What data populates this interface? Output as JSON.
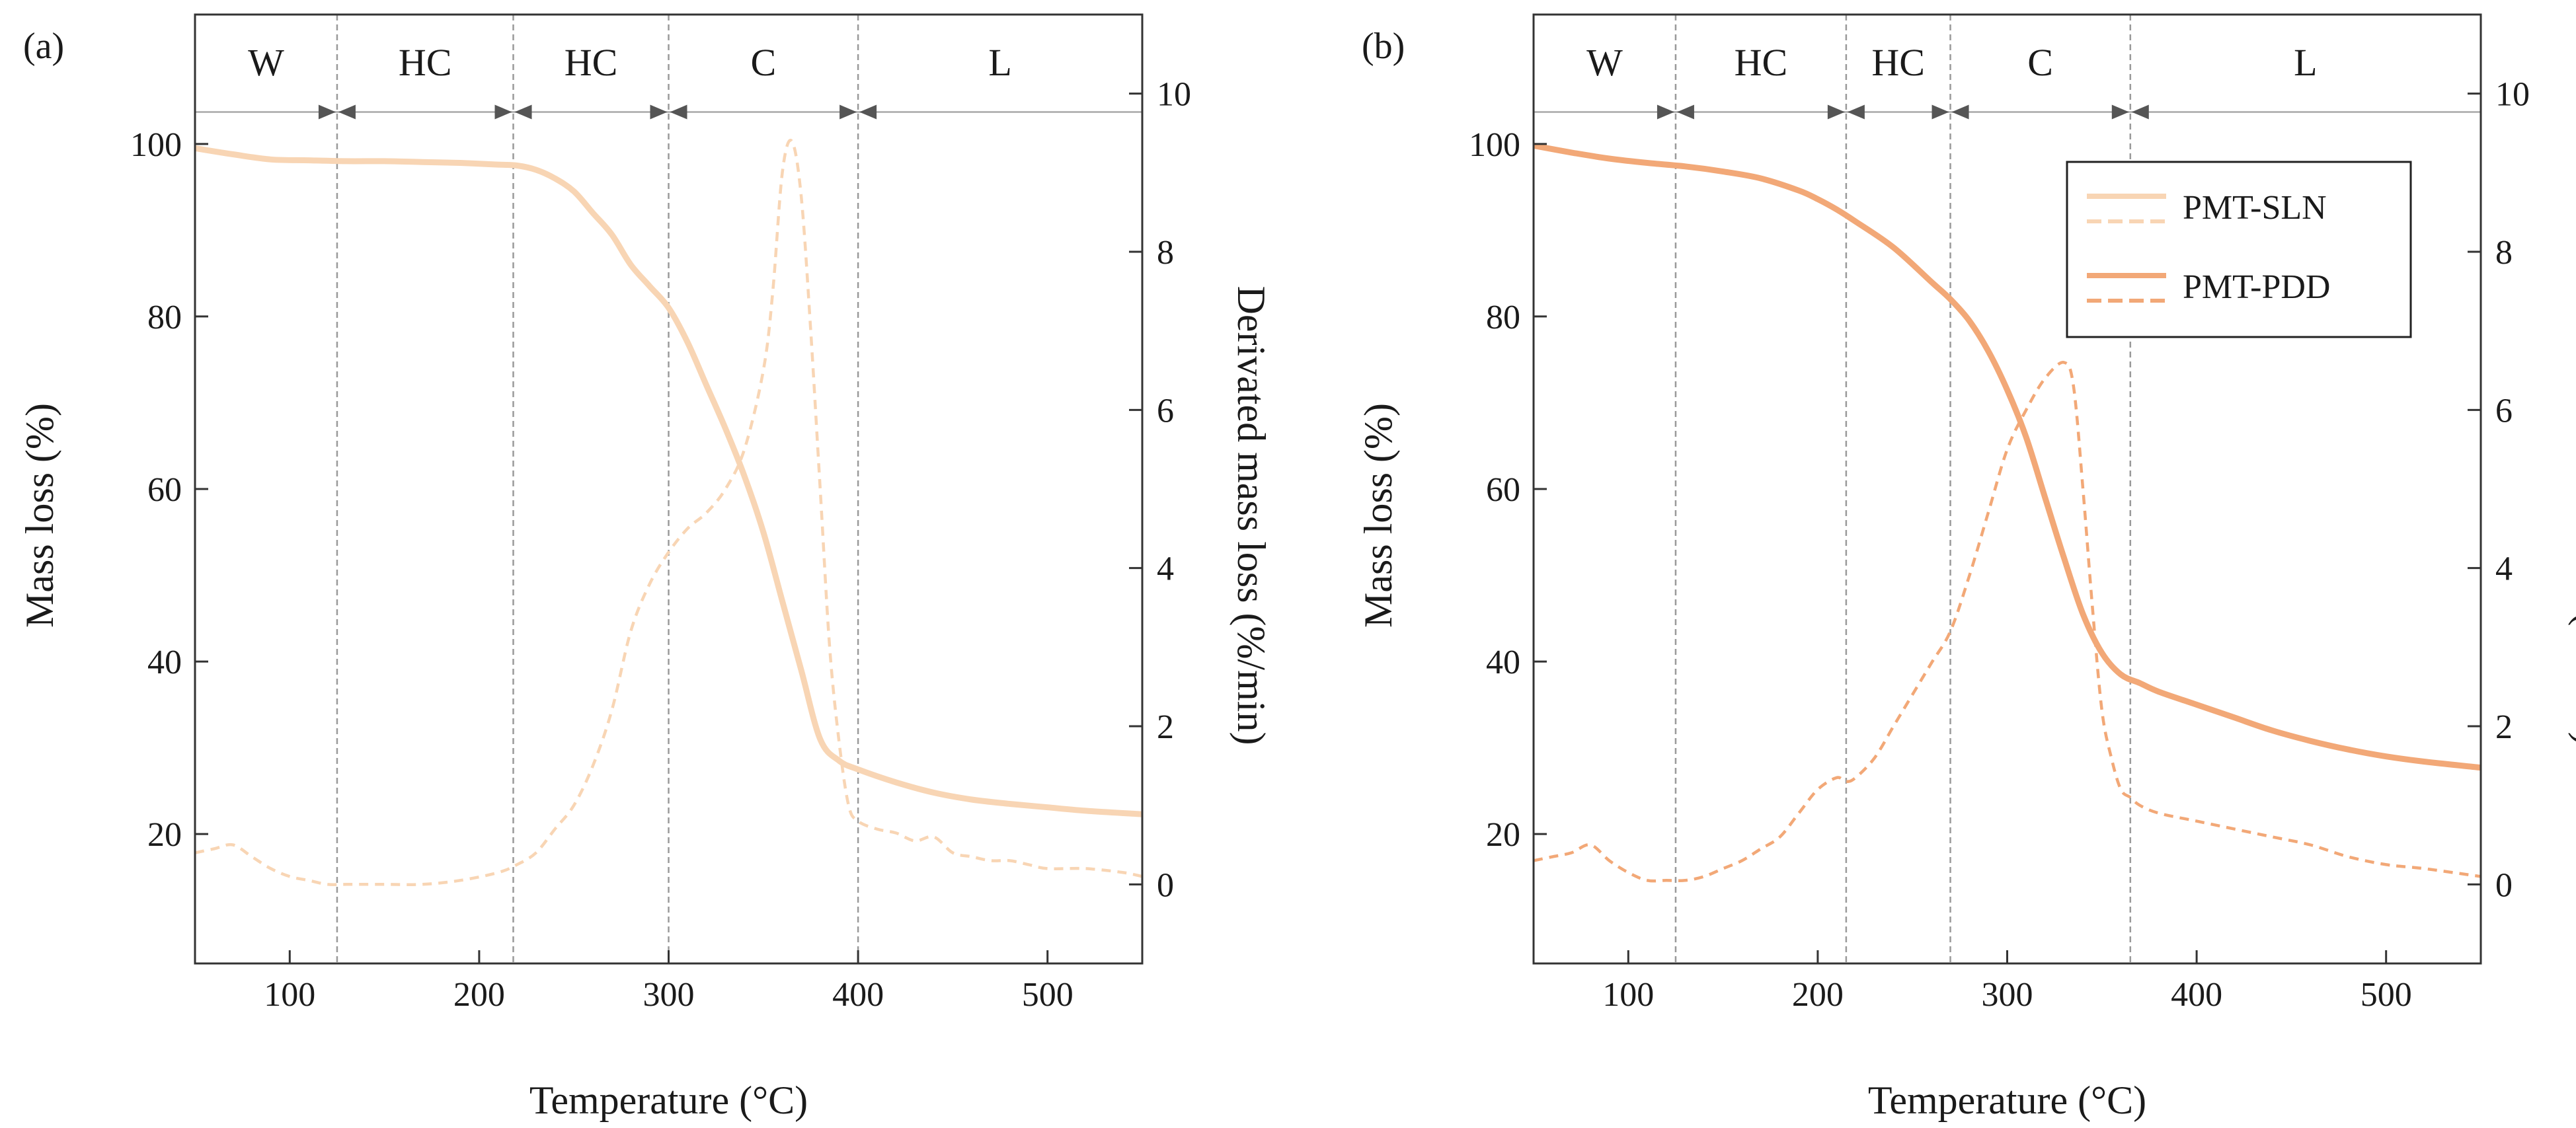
{
  "chart_data": [
    {
      "type": "line",
      "panel_label": "(a)",
      "xlabel": "Temperature (°C)",
      "ylabel": "Mass loss (%)",
      "y2label": "Derivated mass loss (%/min)",
      "xlim": [
        50,
        550
      ],
      "ylim": [
        5,
        115
      ],
      "y2lim": [
        -1,
        11
      ],
      "xticks": [
        100,
        200,
        300,
        400,
        500
      ],
      "yticks": [
        20,
        40,
        60,
        80,
        100
      ],
      "y2ticks": [
        0,
        2,
        4,
        6,
        8,
        10
      ],
      "color": "#f8d5b4",
      "region_top_y": 103.7,
      "boundaries": [
        125,
        218,
        300,
        400
      ],
      "regions": [
        {
          "label": "W",
          "from": 50,
          "to": 125
        },
        {
          "label": "HC",
          "from": 125,
          "to": 218
        },
        {
          "label": "HC",
          "from": 218,
          "to": 300
        },
        {
          "label": "C",
          "from": 300,
          "to": 400
        },
        {
          "label": "L",
          "from": 400,
          "to": 550
        }
      ],
      "series": [
        {
          "name": "PMT-SLN mass loss",
          "axis": "left",
          "style": "solid",
          "x": [
            50,
            70,
            90,
            110,
            130,
            150,
            170,
            190,
            210,
            220,
            230,
            240,
            250,
            260,
            270,
            280,
            290,
            300,
            310,
            320,
            330,
            340,
            350,
            360,
            370,
            380,
            390,
            400,
            420,
            440,
            460,
            480,
            500,
            520,
            550
          ],
          "y": [
            99.5,
            98.8,
            98.2,
            98.1,
            98.0,
            98.0,
            97.9,
            97.8,
            97.6,
            97.5,
            97.0,
            96.0,
            94.5,
            92.0,
            89.5,
            86.0,
            83.5,
            81.0,
            77.0,
            72.0,
            67.0,
            61.5,
            55.0,
            47.0,
            39.0,
            31.0,
            28.5,
            27.5,
            26.0,
            24.8,
            24.0,
            23.5,
            23.1,
            22.7,
            22.3
          ]
        },
        {
          "name": "PMT-SLN derivative",
          "axis": "right",
          "style": "dashed",
          "x": [
            50,
            60,
            70,
            80,
            90,
            100,
            110,
            120,
            130,
            150,
            170,
            190,
            210,
            220,
            230,
            240,
            250,
            260,
            270,
            280,
            290,
            300,
            310,
            320,
            330,
            340,
            350,
            355,
            360,
            365,
            370,
            375,
            380,
            385,
            390,
            395,
            400,
            410,
            420,
            430,
            440,
            450,
            460,
            470,
            480,
            490,
            500,
            520,
            540,
            550
          ],
          "y": [
            0.4,
            0.45,
            0.5,
            0.35,
            0.2,
            0.1,
            0.05,
            0.0,
            0.0,
            0.0,
            0.0,
            0.05,
            0.15,
            0.25,
            0.4,
            0.7,
            1.0,
            1.5,
            2.2,
            3.2,
            3.8,
            4.2,
            4.5,
            4.7,
            5.0,
            5.5,
            6.5,
            7.5,
            9.0,
            9.4,
            8.7,
            7.0,
            5.0,
            3.0,
            1.8,
            1.0,
            0.8,
            0.7,
            0.65,
            0.55,
            0.6,
            0.4,
            0.35,
            0.3,
            0.3,
            0.25,
            0.2,
            0.2,
            0.15,
            0.1
          ]
        }
      ]
    },
    {
      "type": "line",
      "panel_label": "(b)",
      "xlabel": "Temperature (°C)",
      "ylabel": "Mass loss (%)",
      "y2label": "Derivated mass loss (%/min)",
      "xlim": [
        50,
        550
      ],
      "ylim": [
        5,
        115
      ],
      "y2lim": [
        -1,
        11
      ],
      "xticks": [
        100,
        200,
        300,
        400,
        500
      ],
      "yticks": [
        20,
        40,
        60,
        80,
        100
      ],
      "y2ticks": [
        0,
        2,
        4,
        6,
        8,
        10
      ],
      "color": "#f2a877",
      "region_top_y": 103.7,
      "boundaries": [
        125,
        215,
        270,
        365
      ],
      "regions": [
        {
          "label": "W",
          "from": 50,
          "to": 125
        },
        {
          "label": "HC",
          "from": 125,
          "to": 215
        },
        {
          "label": "HC",
          "from": 215,
          "to": 270
        },
        {
          "label": "C",
          "from": 270,
          "to": 365
        },
        {
          "label": "L",
          "from": 365,
          "to": 550
        }
      ],
      "legend": {
        "position": "top-right",
        "entries": [
          {
            "label": "PMT-SLN",
            "color": "#f8d5b4"
          },
          {
            "label": "PMT-PDD",
            "color": "#f2a877"
          }
        ]
      },
      "series": [
        {
          "name": "PMT-PDD mass loss",
          "axis": "left",
          "style": "solid",
          "x": [
            50,
            70,
            90,
            110,
            130,
            150,
            170,
            190,
            200,
            210,
            220,
            240,
            260,
            270,
            280,
            290,
            300,
            310,
            320,
            330,
            340,
            350,
            360,
            370,
            380,
            400,
            420,
            440,
            460,
            480,
            500,
            520,
            550
          ],
          "y": [
            99.8,
            99.0,
            98.3,
            97.8,
            97.4,
            96.8,
            96.0,
            94.6,
            93.6,
            92.4,
            91.0,
            88.0,
            84.0,
            82.0,
            79.5,
            76.0,
            71.5,
            66.0,
            59.0,
            52.0,
            45.5,
            41.0,
            38.5,
            37.5,
            36.5,
            35.0,
            33.5,
            32.0,
            30.8,
            29.8,
            29.0,
            28.4,
            27.7
          ]
        },
        {
          "name": "PMT-PDD derivative",
          "axis": "right",
          "style": "dashed",
          "x": [
            50,
            60,
            70,
            80,
            90,
            100,
            110,
            120,
            130,
            140,
            150,
            160,
            170,
            180,
            190,
            200,
            210,
            215,
            220,
            230,
            240,
            250,
            260,
            270,
            280,
            290,
            300,
            310,
            320,
            330,
            335,
            340,
            345,
            350,
            355,
            360,
            365,
            370,
            380,
            400,
            420,
            440,
            460,
            480,
            500,
            520,
            550
          ],
          "y": [
            0.3,
            0.35,
            0.4,
            0.5,
            0.3,
            0.15,
            0.05,
            0.05,
            0.05,
            0.1,
            0.2,
            0.3,
            0.45,
            0.6,
            0.9,
            1.2,
            1.35,
            1.3,
            1.35,
            1.6,
            2.0,
            2.4,
            2.8,
            3.2,
            3.9,
            4.7,
            5.5,
            6.0,
            6.4,
            6.6,
            6.3,
            5.0,
            3.5,
            2.2,
            1.6,
            1.2,
            1.1,
            1.0,
            0.9,
            0.8,
            0.7,
            0.6,
            0.5,
            0.35,
            0.25,
            0.2,
            0.1
          ]
        }
      ]
    }
  ]
}
